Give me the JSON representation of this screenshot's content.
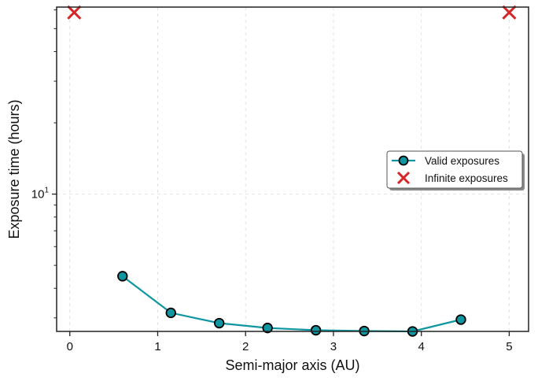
{
  "chart_data": {
    "type": "line",
    "xlabel": "Semi-major axis (AU)",
    "ylabel": "Exposure time (hours)",
    "xlim": [
      -0.15,
      5.22
    ],
    "ylim_log10": [
      0.42,
      1.79
    ],
    "yscale": "log",
    "x_ticks": [
      0,
      1,
      2,
      3,
      4,
      5
    ],
    "y_major_ticks": [
      {
        "value": 10,
        "base": "10",
        "exp": "1"
      }
    ],
    "y_minor_ticks": [
      3,
      4,
      5,
      6,
      7,
      8,
      9,
      20,
      30,
      40,
      50,
      60
    ],
    "grid": true,
    "legend_position": "right",
    "colors": {
      "valid": "#0f96a0",
      "infinite": "#d62728",
      "marker_edge": "#000000"
    },
    "series": [
      {
        "name": "Valid exposures",
        "kind": "line-marker",
        "x": [
          0.6,
          1.15,
          1.7,
          2.25,
          2.8,
          3.35,
          3.9,
          4.45
        ],
        "y": [
          4.5,
          3.15,
          2.85,
          2.72,
          2.66,
          2.64,
          2.63,
          2.95
        ]
      },
      {
        "name": "Infinite exposures",
        "kind": "x-marker",
        "x": [
          0.05,
          5.0
        ],
        "y": [
          58.5,
          58.5
        ]
      }
    ]
  }
}
